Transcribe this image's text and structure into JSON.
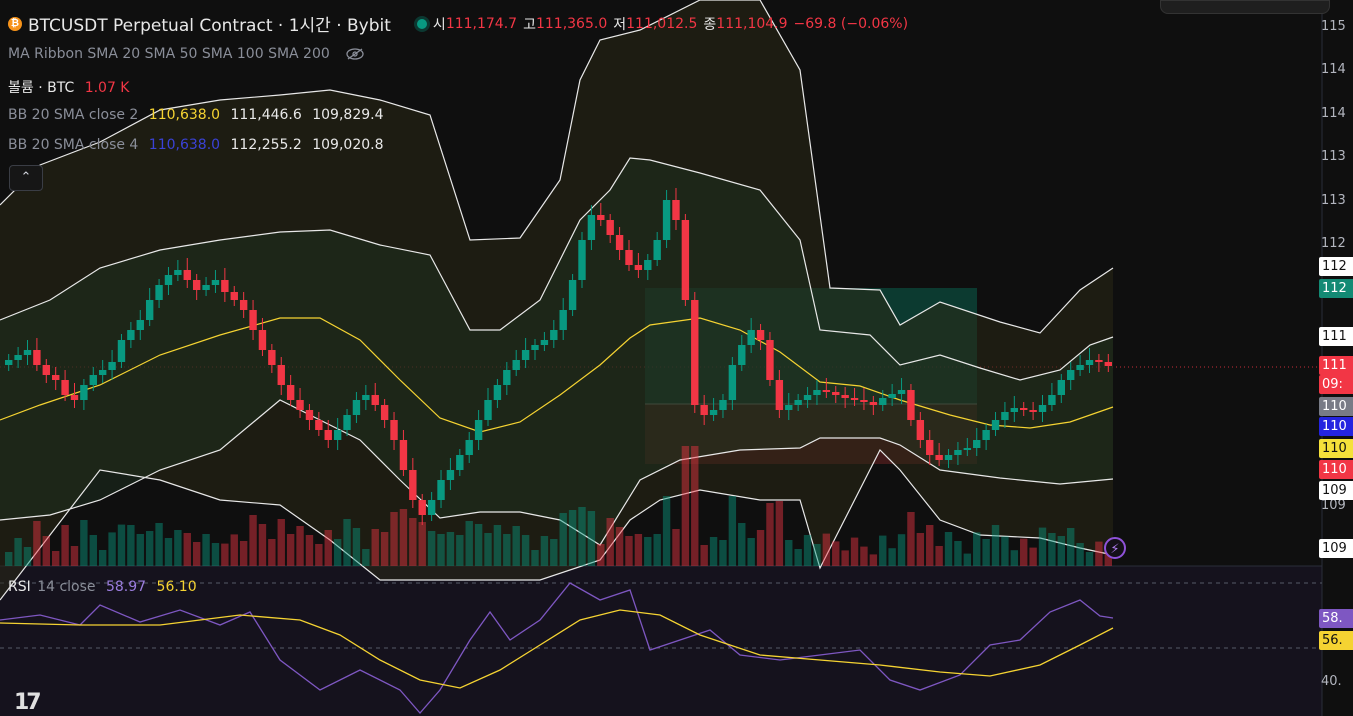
{
  "header": {
    "coin_icon": "bitcoin-icon",
    "title": "BTCUSDT Perpetual Contract · 1시간 · Bybit",
    "status_dot": "market-open-dot",
    "open_label": "시",
    "open_value": "111,174.7",
    "high_label": "고",
    "high_value": "111,365.0",
    "low_label": "저",
    "low_value": "111,012.5",
    "close_label": "종",
    "close_value": "111,104.9",
    "change": "−69.8 (−0.06%)"
  },
  "indicators": {
    "ma_ribbon": "MA Ribbon SMA 20 SMA 50 SMA 100 SMA 200",
    "volume_label": "볼륨 · BTC",
    "volume_value": "1.07 K",
    "bb2_label": "BB 20 SMA close 2",
    "bb2_basis": "110,638.0",
    "bb2_upper": "111,446.6",
    "bb2_lower": "109,829.4",
    "bb4_label": "BB 20 SMA close 4",
    "bb4_basis": "110,638.0",
    "bb4_upper": "112,255.2",
    "bb4_lower": "109,020.8",
    "collapse_icon": "chevron-up-icon"
  },
  "rsi": {
    "label": "RSI",
    "params": "14 close",
    "value": "58.97",
    "ma_value": "56.10"
  },
  "price_axis": {
    "labels": [
      "115",
      "114",
      "114",
      "113",
      "113",
      "112",
      "109",
      "40."
    ],
    "tags": [
      "112",
      "112",
      "111",
      "111",
      "09:",
      "110",
      "110",
      "110",
      "110",
      "109",
      "109",
      "58.",
      "56."
    ]
  },
  "colors": {
    "up": "#089981",
    "down": "#f23645",
    "bb_basis": "#f5d332",
    "rsi_line": "#7e57c2",
    "background": "#0f0f0f"
  },
  "logo": "TV",
  "bolt_icon": "lightning-icon"
}
